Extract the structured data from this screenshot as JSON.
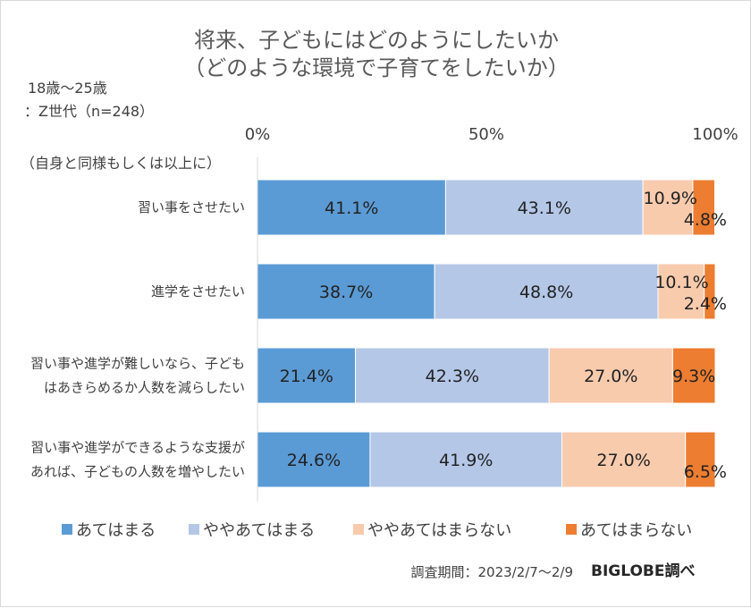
{
  "chart_data": {
    "type": "bar",
    "orientation": "horizontal",
    "stacked": "100%",
    "title": [
      "将来、子どもにはどのようにしたいか",
      "（どのような環境で子育てをしたいか）"
    ],
    "subtitle": [
      "18歳～25歳",
      "：Z世代（n=248）"
    ],
    "category_header": "（自身と同様もしくは以上に）",
    "x_ticks": [
      "0%",
      "50%",
      "100%"
    ],
    "xlim": [
      0,
      100
    ],
    "grid": false,
    "legend_position": "bottom",
    "categories": [
      [
        "習い事をさせたい"
      ],
      [
        "進学をさせたい"
      ],
      [
        "習い事や進学が難しいなら、子ども",
        "はあきらめるか人数を減らしたい"
      ],
      [
        "習い事や進学ができるような支援が",
        "あれば、子どもの人数を増やしたい"
      ]
    ],
    "series": [
      {
        "name": "あてはまる",
        "color": "#5b9bd5",
        "values": [
          41.1,
          38.7,
          21.4,
          24.6
        ],
        "labels": [
          "41.1%",
          "38.7%",
          "21.4%",
          "24.6%"
        ]
      },
      {
        "name": "ややあてはまる",
        "color": "#b4c7e7",
        "values": [
          43.1,
          48.8,
          42.3,
          41.9
        ],
        "labels": [
          "43.1%",
          "48.8%",
          "42.3%",
          "41.9%"
        ]
      },
      {
        "name": "ややあてはまらない",
        "color": "#f8cbad",
        "values": [
          10.9,
          10.1,
          27.0,
          27.0
        ],
        "labels": [
          "10.9%",
          "10.1%",
          "27.0%",
          "27.0%"
        ]
      },
      {
        "name": "あてはまらない",
        "color": "#ed7d31",
        "values": [
          4.8,
          2.4,
          9.3,
          6.5
        ],
        "labels": [
          "4.8%",
          "2.4%",
          "9.3%",
          "6.5%"
        ]
      }
    ]
  },
  "footer": {
    "period": "調査期間：2023/2/7～2/9",
    "brand": "BIGLOBE調べ"
  }
}
